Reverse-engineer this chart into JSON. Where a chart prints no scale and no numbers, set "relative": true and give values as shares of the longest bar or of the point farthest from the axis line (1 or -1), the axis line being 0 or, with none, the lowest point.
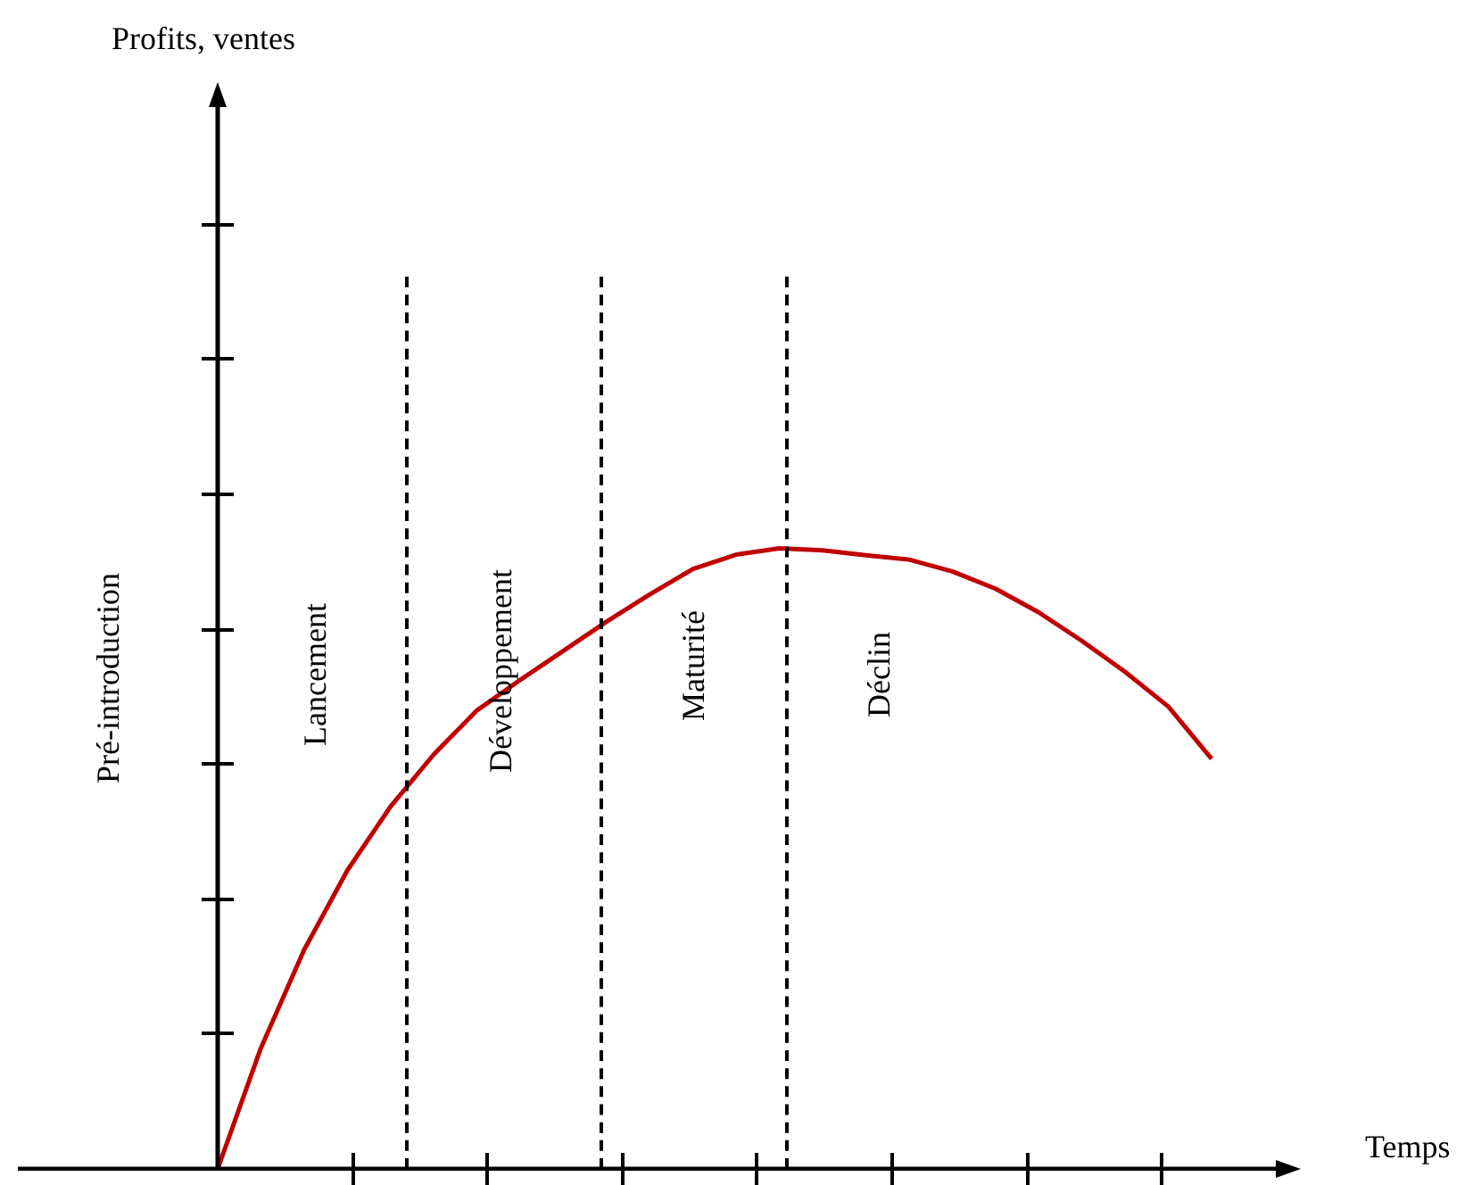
{
  "chart_data": {
    "type": "line",
    "relative": true,
    "xlabel": "Temps",
    "categories": [
      null,
      null,
      null,
      null,
      null,
      null,
      null,
      null,
      null,
      null,
      null,
      null,
      null,
      null,
      null,
      null,
      null,
      null,
      null,
      null,
      null,
      null,
      null,
      null
    ],
    "series": [
      {
        "color": "#c00000",
        "values": [
          0,
          0.195,
          0.353,
          0.481,
          0.584,
          0.668,
          0.739,
          0.788,
          0.835,
          0.882,
          0.926,
          0.967,
          0.99,
          1,
          0.997,
          0.989,
          0.982,
          0.963,
          0.935,
          0.897,
          0.851,
          0.801,
          0.745,
          0.661
        ]
      }
    ],
    "marker": "none",
    "line_style": "solid",
    "annotations": [
      "Pré-introduction",
      "Lancement",
      "Développement",
      "Maturité",
      "Déclin",
      "Profits, ventes"
    ]
  }
}
